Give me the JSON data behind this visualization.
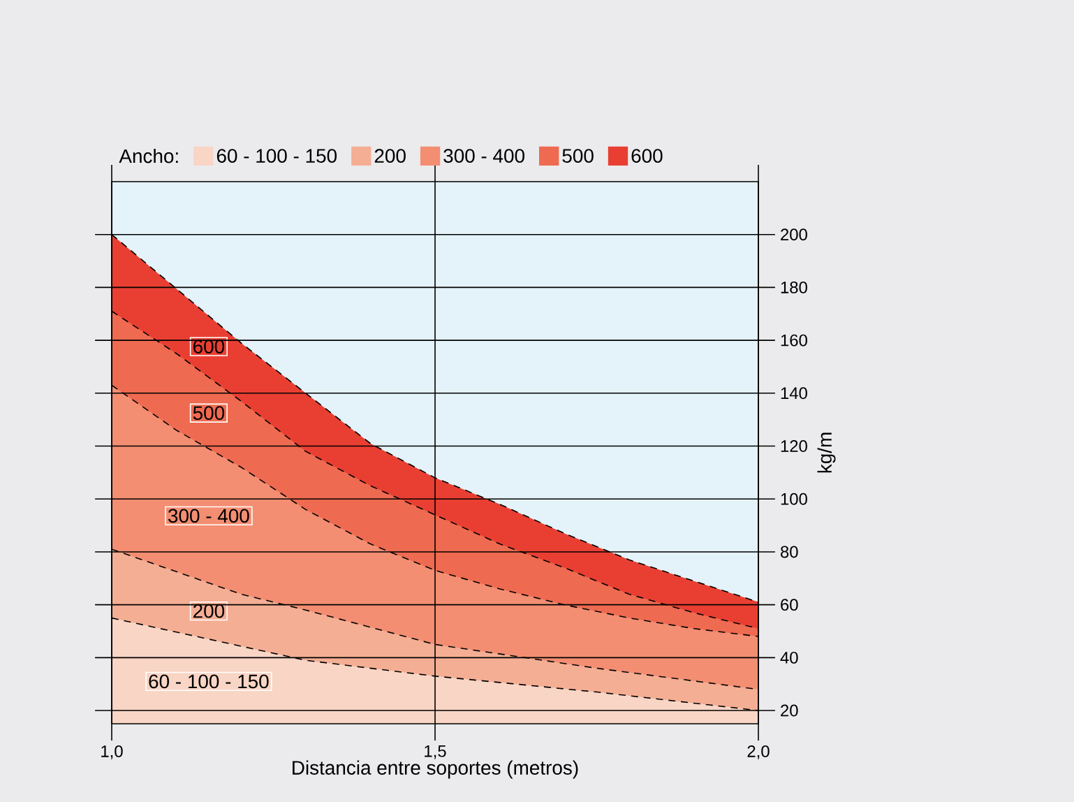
{
  "chart_data": {
    "type": "area",
    "xlabel": "Distancia entre soportes (metros)",
    "ylabel": "kg/m",
    "legend_title": "Ancho:",
    "xlim": [
      1.0,
      2.0
    ],
    "xticks": [
      {
        "value": 1.0,
        "label": "1,0"
      },
      {
        "value": 1.5,
        "label": "1,5"
      },
      {
        "value": 2.0,
        "label": "2,0"
      }
    ],
    "ylim": [
      15,
      220
    ],
    "yticks": [
      20,
      40,
      60,
      80,
      100,
      120,
      140,
      160,
      180,
      200
    ],
    "grid": true,
    "legend": "top",
    "line_style": "dashed",
    "marker": "none",
    "series": [
      {
        "name": "60 - 100 - 150",
        "color": "#f9d5c5",
        "x": [
          1.0,
          1.3,
          1.5,
          1.75,
          2.0
        ],
        "values": [
          55,
          39,
          33,
          27,
          20
        ]
      },
      {
        "name": "200",
        "color": "#f4ae94",
        "x": [
          1.0,
          1.2,
          1.3,
          1.5,
          1.75,
          2.0
        ],
        "values": [
          81,
          64,
          58,
          45,
          36,
          28
        ]
      },
      {
        "name": "300 - 400",
        "color": "#f38e72",
        "x": [
          1.0,
          1.1,
          1.2,
          1.3,
          1.4,
          1.5,
          1.6,
          1.7,
          1.8,
          1.9,
          2.0
        ],
        "values": [
          143,
          126,
          112,
          96,
          83,
          73,
          66,
          60,
          55,
          51,
          48
        ]
      },
      {
        "name": "500",
        "color": "#ee6a50",
        "x": [
          1.0,
          1.1,
          1.2,
          1.3,
          1.4,
          1.5,
          1.6,
          1.7,
          1.8,
          1.9,
          2.0
        ],
        "values": [
          171,
          155,
          137,
          118,
          105,
          94,
          83,
          74,
          64,
          57,
          51
        ]
      },
      {
        "name": "600",
        "color": "#e83f32",
        "x": [
          1.0,
          1.2,
          1.3,
          1.4,
          1.5,
          1.6,
          1.7,
          1.8,
          1.9,
          2.0
        ],
        "values": [
          200,
          159,
          140,
          121,
          108,
          98,
          87,
          77,
          69,
          61
        ]
      }
    ]
  }
}
